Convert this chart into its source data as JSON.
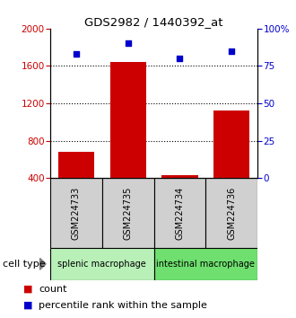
{
  "title": "GDS2982 / 1440392_at",
  "samples": [
    "GSM224733",
    "GSM224735",
    "GSM224734",
    "GSM224736"
  ],
  "counts": [
    680,
    1640,
    430,
    1120
  ],
  "percentiles": [
    83,
    90,
    80,
    85
  ],
  "ylim_left": [
    400,
    2000
  ],
  "ylim_right": [
    0,
    100
  ],
  "yticks_left": [
    400,
    800,
    1200,
    1600,
    2000
  ],
  "yticks_right": [
    0,
    25,
    50,
    75,
    100
  ],
  "yticklabels_right": [
    "0",
    "25",
    "50",
    "75",
    "100%"
  ],
  "grid_yticks": [
    800,
    1200,
    1600
  ],
  "bar_color": "#cc0000",
  "scatter_color": "#0000cc",
  "cell_types": [
    "splenic macrophage",
    "intestinal macrophage"
  ],
  "cell_type_color_1": "#b8f0b8",
  "cell_type_color_2": "#6fe06f",
  "sample_box_color": "#d0d0d0",
  "left_color": "#cc0000",
  "right_color": "#0000cc",
  "bar_width": 0.7,
  "figsize": [
    3.3,
    3.54
  ],
  "dpi": 100
}
